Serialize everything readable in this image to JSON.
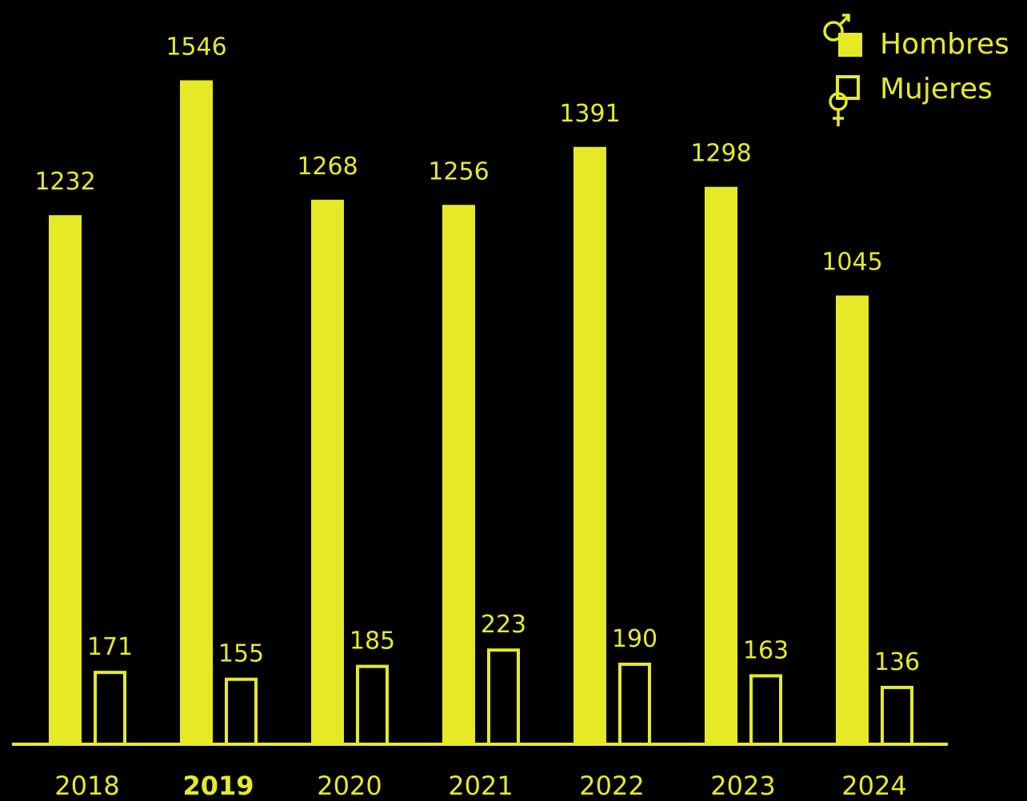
{
  "colors": {
    "background": "#000000",
    "accent": "#e6ea26"
  },
  "chart_data": {
    "type": "bar",
    "title": "",
    "xlabel": "",
    "ylabel": "",
    "ylim": [
      0,
      1600
    ],
    "grid": false,
    "legend_placement": "top-right",
    "categories": [
      "2018",
      "2019",
      "2020",
      "2021",
      "2022",
      "2023",
      "2024"
    ],
    "highlight_category": "2019",
    "series": [
      {
        "name": "Hombres",
        "style": "filled",
        "icon": "male-symbol-icon",
        "values": [
          1232,
          1546,
          1268,
          1256,
          1391,
          1298,
          1045
        ]
      },
      {
        "name": "Mujeres",
        "style": "outline",
        "icon": "female-symbol-icon",
        "values": [
          171,
          155,
          185,
          223,
          190,
          163,
          136
        ]
      }
    ]
  }
}
